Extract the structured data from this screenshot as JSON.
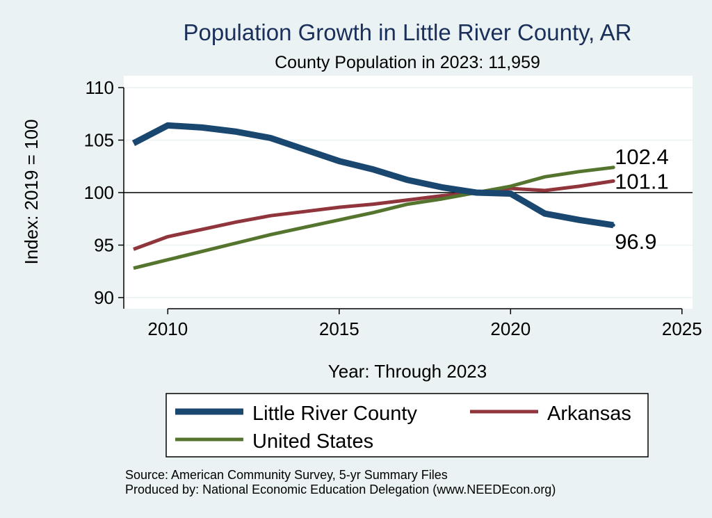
{
  "chart_data": {
    "type": "line",
    "title": "Population Growth in Little River County, AR",
    "subtitle": "County Population in 2023: 11,959",
    "xlabel": "Year: Through 2023",
    "ylabel": "Index: 2019 = 100",
    "xlim": [
      2009,
      2025
    ],
    "ylim": [
      89,
      110
    ],
    "xticks": [
      2010,
      2015,
      2020,
      2025
    ],
    "yticks": [
      90,
      95,
      100,
      105,
      110
    ],
    "reference_line": 100,
    "grid": true,
    "legend_position": "bottom",
    "x": [
      2009,
      2010,
      2011,
      2012,
      2013,
      2014,
      2015,
      2016,
      2017,
      2018,
      2019,
      2020,
      2021,
      2022,
      2023
    ],
    "series": [
      {
        "name": "Little River  County",
        "color": "#1a476f",
        "values": [
          104.7,
          106.4,
          106.2,
          105.8,
          105.2,
          104.1,
          103.0,
          102.2,
          101.2,
          100.5,
          100.0,
          99.9,
          98.0,
          97.4,
          96.9
        ],
        "end_label": "96.9"
      },
      {
        "name": "Arkansas",
        "color": "#90353b",
        "values": [
          94.6,
          95.8,
          96.5,
          97.2,
          97.8,
          98.2,
          98.6,
          98.9,
          99.3,
          99.7,
          100.0,
          100.4,
          100.2,
          100.6,
          101.1
        ],
        "end_label": "101.1"
      },
      {
        "name": "United States",
        "color": "#55752f",
        "values": [
          92.8,
          93.6,
          94.4,
          95.2,
          96.0,
          96.7,
          97.4,
          98.1,
          98.9,
          99.4,
          100.0,
          100.6,
          101.5,
          102.0,
          102.4
        ],
        "end_label": "102.4"
      }
    ]
  },
  "notes": {
    "source": "Source: American Community Survey, 5-yr Summary Files",
    "produced": "Produced by: National Economic Education Delegation (www.NEEDEcon.org)"
  }
}
